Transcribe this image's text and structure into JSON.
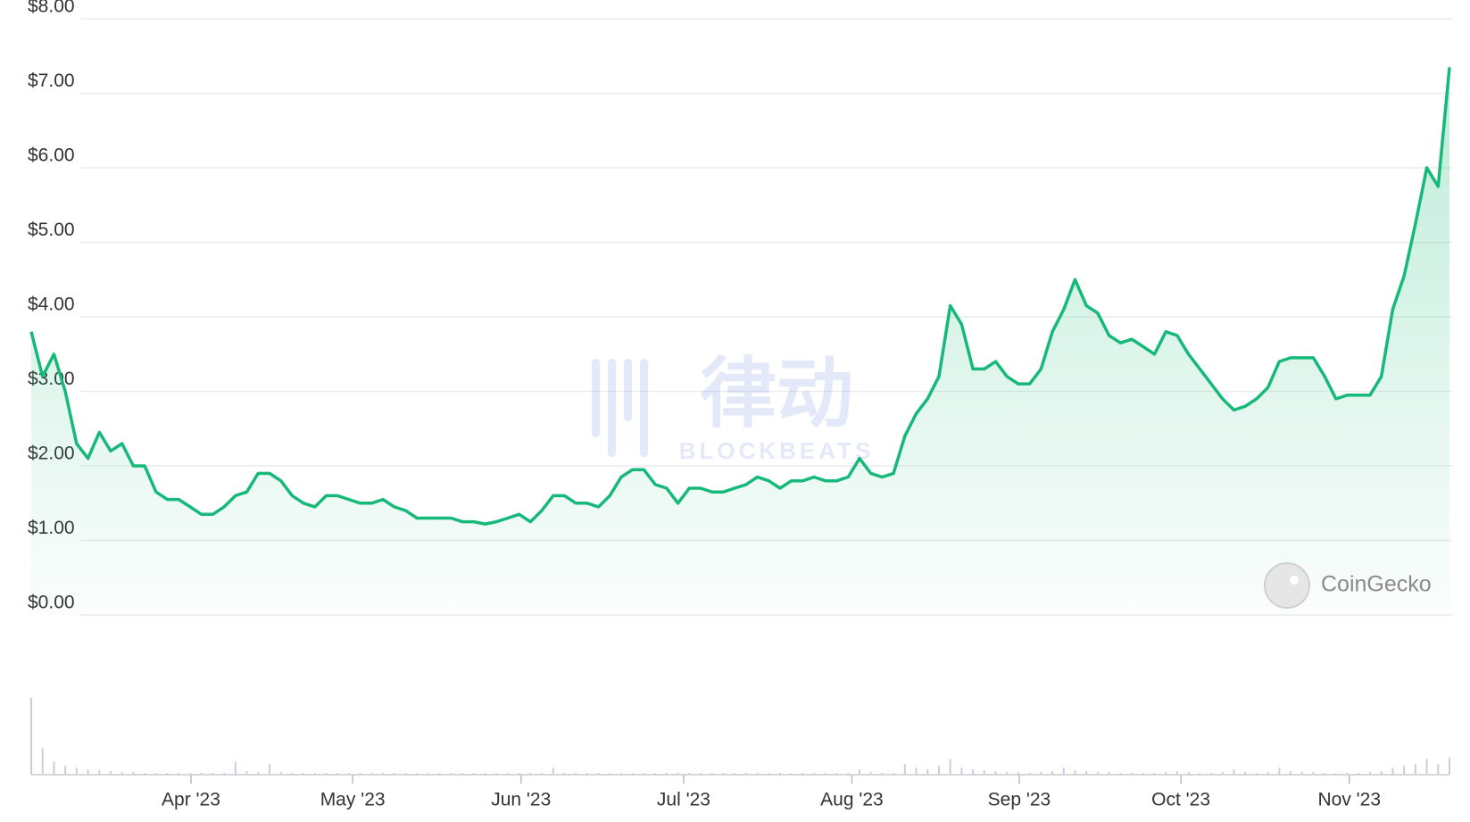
{
  "chart_data": {
    "type": "line",
    "values": [
      3.8,
      3.2,
      3.5,
      3.0,
      2.3,
      2.1,
      2.45,
      2.2,
      2.3,
      2.0,
      2.0,
      1.65,
      1.55,
      1.55,
      1.45,
      1.35,
      1.35,
      1.45,
      1.6,
      1.65,
      1.9,
      1.9,
      1.8,
      1.6,
      1.5,
      1.45,
      1.6,
      1.6,
      1.55,
      1.5,
      1.5,
      1.55,
      1.45,
      1.4,
      1.3,
      1.3,
      1.3,
      1.3,
      1.25,
      1.25,
      1.22,
      1.25,
      1.3,
      1.35,
      1.25,
      1.4,
      1.6,
      1.6,
      1.5,
      1.5,
      1.45,
      1.6,
      1.85,
      1.95,
      1.95,
      1.75,
      1.7,
      1.5,
      1.7,
      1.7,
      1.65,
      1.65,
      1.7,
      1.75,
      1.85,
      1.8,
      1.7,
      1.8,
      1.8,
      1.85,
      1.8,
      1.8,
      1.85,
      2.1,
      1.9,
      1.85,
      1.9,
      2.4,
      2.7,
      2.9,
      3.2,
      4.15,
      3.9,
      3.3,
      3.3,
      3.4,
      3.2,
      3.1,
      3.1,
      3.3,
      3.8,
      4.1,
      4.5,
      4.15,
      4.05,
      3.75,
      3.65,
      3.7,
      3.6,
      3.5,
      3.8,
      3.75,
      3.5,
      3.3,
      3.1,
      2.9,
      2.75,
      2.8,
      2.9,
      3.05,
      3.4,
      3.45,
      3.45,
      3.45,
      3.2,
      2.9,
      2.95,
      2.95,
      2.95,
      3.2,
      4.1,
      4.55,
      5.25,
      6.0,
      5.75,
      7.35
    ],
    "color": "#16b979",
    "volume": [
      88,
      30,
      15,
      10,
      8,
      6,
      5,
      4,
      3,
      3,
      2,
      2,
      2,
      2,
      2,
      2,
      2,
      2,
      15,
      4,
      3,
      12,
      3,
      2,
      2,
      2,
      2,
      2,
      2,
      2,
      2,
      2,
      2,
      2,
      2,
      2,
      2,
      2,
      2,
      2,
      2,
      2,
      2,
      2,
      2,
      2,
      8,
      2,
      2,
      2,
      2,
      2,
      2,
      2,
      2,
      2,
      2,
      2,
      2,
      2,
      2,
      2,
      2,
      2,
      2,
      2,
      2,
      2,
      2,
      2,
      2,
      2,
      2,
      6,
      3,
      2,
      2,
      12,
      8,
      6,
      10,
      18,
      8,
      6,
      5,
      4,
      3,
      3,
      2,
      3,
      4,
      8,
      5,
      4,
      3,
      3,
      2,
      2,
      2,
      2,
      3,
      4,
      3,
      2,
      2,
      3,
      6,
      3,
      2,
      3,
      8,
      4,
      3,
      3,
      2,
      2,
      2,
      2,
      3,
      4,
      8,
      10,
      12,
      18,
      12,
      20
    ],
    "volume_color": "#c9cede",
    "vlim": [
      0,
      100
    ],
    "xlim": [
      0,
      125
    ],
    "xticks": [
      {
        "value": 14.08,
        "label": "Apr '23"
      },
      {
        "value": 28.33,
        "label": "May '23"
      },
      {
        "value": 43.17,
        "label": "Jun '23"
      },
      {
        "value": 57.5,
        "label": "Jul '23"
      },
      {
        "value": 72.33,
        "label": "Aug '23"
      },
      {
        "value": 87.08,
        "label": "Sep '23"
      },
      {
        "value": 101.33,
        "label": "Oct '23"
      },
      {
        "value": 116.17,
        "label": "Nov '23"
      }
    ],
    "ylim": [
      0,
      8
    ],
    "yticks": [
      {
        "value": 0,
        "label": "$0.00"
      },
      {
        "value": 1,
        "label": "$1.00"
      },
      {
        "value": 2,
        "label": "$2.00"
      },
      {
        "value": 3,
        "label": "$3.00"
      },
      {
        "value": 4,
        "label": "$4.00"
      },
      {
        "value": 5,
        "label": "$5.00"
      },
      {
        "value": 6,
        "label": "$6.00"
      },
      {
        "value": 7,
        "label": "$7.00"
      },
      {
        "value": 8,
        "label": "$8.00"
      }
    ],
    "grid": true,
    "watermark": "律动",
    "watermark_sub": "BLOCKBEATS",
    "brand": "CoinGecko"
  }
}
